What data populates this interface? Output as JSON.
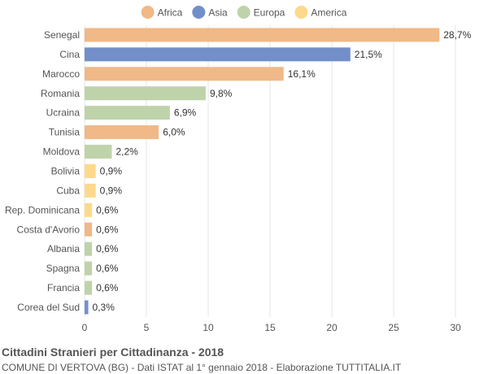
{
  "chart_data": {
    "type": "bar",
    "orientation": "horizontal",
    "legend_position": "top",
    "grid": true,
    "xlim": [
      0,
      30
    ],
    "xticks": [
      0,
      5,
      10,
      15,
      20,
      25,
      30
    ],
    "legend": [
      {
        "key": "africa",
        "name": "Africa",
        "color": "#f0b987"
      },
      {
        "key": "asia",
        "name": "Asia",
        "color": "#728fc9"
      },
      {
        "key": "europa",
        "name": "Europa",
        "color": "#bfd3aa"
      },
      {
        "key": "america",
        "name": "America",
        "color": "#fdd98b"
      }
    ],
    "bars": [
      {
        "category": "Senegal",
        "value": 28.7,
        "label": "28,7%",
        "group": "africa"
      },
      {
        "category": "Cina",
        "value": 21.5,
        "label": "21,5%",
        "group": "asia"
      },
      {
        "category": "Marocco",
        "value": 16.1,
        "label": "16,1%",
        "group": "africa"
      },
      {
        "category": "Romania",
        "value": 9.8,
        "label": "9,8%",
        "group": "europa"
      },
      {
        "category": "Ucraina",
        "value": 6.9,
        "label": "6,9%",
        "group": "europa"
      },
      {
        "category": "Tunisia",
        "value": 6.0,
        "label": "6,0%",
        "group": "africa"
      },
      {
        "category": "Moldova",
        "value": 2.2,
        "label": "2,2%",
        "group": "europa"
      },
      {
        "category": "Bolivia",
        "value": 0.9,
        "label": "0,9%",
        "group": "america"
      },
      {
        "category": "Cuba",
        "value": 0.9,
        "label": "0,9%",
        "group": "america"
      },
      {
        "category": "Rep. Dominicana",
        "value": 0.6,
        "label": "0,6%",
        "group": "america"
      },
      {
        "category": "Costa d'Avorio",
        "value": 0.6,
        "label": "0,6%",
        "group": "africa"
      },
      {
        "category": "Albania",
        "value": 0.6,
        "label": "0,6%",
        "group": "europa"
      },
      {
        "category": "Spagna",
        "value": 0.6,
        "label": "0,6%",
        "group": "europa"
      },
      {
        "category": "Francia",
        "value": 0.6,
        "label": "0,6%",
        "group": "europa"
      },
      {
        "category": "Corea del Sud",
        "value": 0.3,
        "label": "0,3%",
        "group": "asia"
      }
    ],
    "title": "Cittadini Stranieri per Cittadinanza - 2018",
    "subtitle": "COMUNE DI VERTOVA (BG) - Dati ISTAT al 1° gennaio 2018 - Elaborazione TUTTITALIA.IT"
  }
}
